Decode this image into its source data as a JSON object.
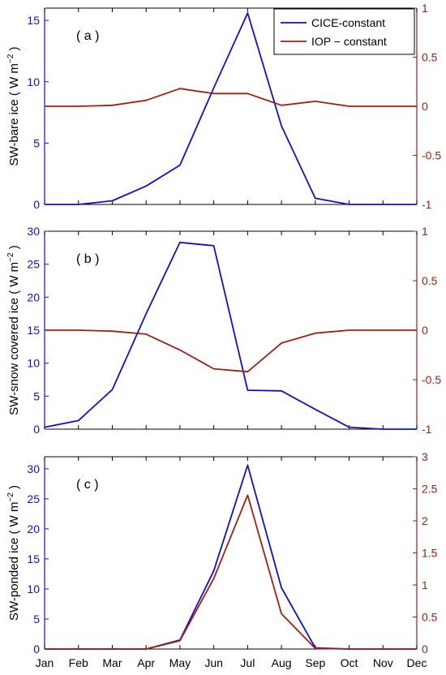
{
  "colors": {
    "cice": "#1010c8",
    "iop": "#a02010",
    "axis": "#000000"
  },
  "months": [
    "Jan",
    "Feb",
    "Mar",
    "Apr",
    "May",
    "Jun",
    "Jul",
    "Aug",
    "Sep",
    "Oct",
    "Nov",
    "Dec"
  ],
  "legend": {
    "cice": "CICE-constant",
    "iop": "IOP − constant"
  },
  "chart_data": [
    {
      "type": "line",
      "panel_label": "( a )",
      "ylabel_main": "SW-bare ice ( W m",
      "ylabel_sup": "−2",
      "ylabel_end": " )",
      "categories": [
        "Jan",
        "Feb",
        "Mar",
        "Apr",
        "May",
        "Jun",
        "Jul",
        "Aug",
        "Sep",
        "Oct",
        "Nov",
        "Dec"
      ],
      "ylim_left": [
        0,
        16
      ],
      "yticks_left": [
        0,
        5,
        10,
        15
      ],
      "ylim_right": [
        -1,
        1
      ],
      "yticks_right": [
        -1,
        -0.5,
        0,
        0.5,
        1
      ],
      "ytick_labels_right": [
        "-1",
        "-0.5",
        "0",
        "0.5",
        "1"
      ],
      "series": [
        {
          "name": "CICE-constant",
          "axis": "left",
          "values": [
            0,
            0,
            0.3,
            1.5,
            3.2,
            9.5,
            15.6,
            6.4,
            0.5,
            0,
            0,
            0
          ]
        },
        {
          "name": "IOP − constant",
          "axis": "right",
          "values": [
            0,
            0,
            0.01,
            0.06,
            0.18,
            0.13,
            0.13,
            0.01,
            0.05,
            0,
            0,
            0
          ]
        }
      ],
      "legend_position": "top-right"
    },
    {
      "type": "line",
      "panel_label": "( b )",
      "ylabel_main": "SW-snow covered ice ( W m",
      "ylabel_sup": "−2",
      "ylabel_end": " )",
      "categories": [
        "Jan",
        "Feb",
        "Mar",
        "Apr",
        "May",
        "Jun",
        "Jul",
        "Aug",
        "Sep",
        "Oct",
        "Nov",
        "Dec"
      ],
      "ylim_left": [
        0,
        30
      ],
      "yticks_left": [
        0,
        5,
        10,
        15,
        20,
        25,
        30
      ],
      "ylim_right": [
        -1,
        1
      ],
      "yticks_right": [
        -1,
        -0.5,
        0,
        0.5,
        1
      ],
      "ytick_labels_right": [
        "-1",
        "-0.5",
        "0",
        "0.5",
        "1"
      ],
      "series": [
        {
          "name": "CICE-constant",
          "axis": "left",
          "values": [
            0.3,
            1.3,
            6,
            17.5,
            28.3,
            27.8,
            5.9,
            5.8,
            3,
            0.3,
            0,
            0
          ]
        },
        {
          "name": "IOP − constant",
          "axis": "right",
          "values": [
            0,
            0,
            -0.01,
            -0.04,
            -0.2,
            -0.39,
            -0.42,
            -0.13,
            -0.03,
            0,
            0,
            0
          ]
        }
      ]
    },
    {
      "type": "line",
      "panel_label": "( c )",
      "ylabel_main": "SW-ponded ice ( W m",
      "ylabel_sup": "−2",
      "ylabel_end": " )",
      "categories": [
        "Jan",
        "Feb",
        "Mar",
        "Apr",
        "May",
        "Jun",
        "Jul",
        "Aug",
        "Sep",
        "Oct",
        "Nov",
        "Dec"
      ],
      "ylim_left": [
        0,
        32
      ],
      "yticks_left": [
        0,
        5,
        10,
        15,
        20,
        25,
        30
      ],
      "ylim_right": [
        0,
        3
      ],
      "yticks_right": [
        0,
        0.5,
        1,
        1.5,
        2,
        2.5,
        3
      ],
      "ytick_labels_right": [
        "0",
        "0.5",
        "1",
        "1.5",
        "2",
        "2.5",
        "3"
      ],
      "series": [
        {
          "name": "CICE-constant",
          "axis": "left",
          "values": [
            0,
            0,
            0,
            0,
            1.5,
            13,
            30.6,
            10.2,
            0.2,
            0,
            0,
            0
          ]
        },
        {
          "name": "IOP − constant",
          "axis": "right",
          "values": [
            0,
            0,
            0,
            0,
            0.13,
            1.1,
            2.4,
            0.55,
            0.01,
            0,
            0,
            0
          ]
        }
      ]
    }
  ]
}
